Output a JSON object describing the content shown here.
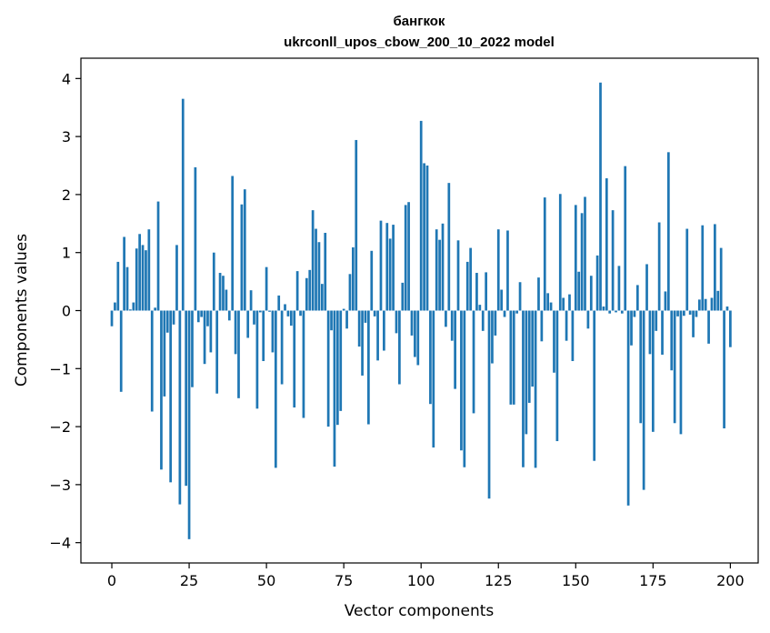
{
  "chart_data": {
    "type": "bar",
    "title_line1": "бангкок",
    "title_line2": "ukrconll_upos_cbow_200_10_2022 model",
    "xlabel": "Vector components",
    "ylabel": "Components values",
    "xlim": [
      -10,
      209
    ],
    "ylim": [
      -4.35,
      4.35
    ],
    "xticks": [
      0,
      25,
      50,
      75,
      100,
      125,
      150,
      175,
      200
    ],
    "xtick_labels": [
      "0",
      "25",
      "50",
      "75",
      "100",
      "125",
      "150",
      "175",
      "200"
    ],
    "yticks": [
      -4,
      -3,
      -2,
      -1,
      0,
      1,
      2,
      3,
      4
    ],
    "ytick_labels": [
      "−4",
      "−3",
      "−2",
      "−1",
      "0",
      "1",
      "2",
      "3",
      "4"
    ],
    "bar_color": "#1f77b4",
    "x_start": 0,
    "values": [
      -0.27,
      0.14,
      0.84,
      -1.4,
      1.27,
      0.75,
      0.02,
      0.14,
      1.07,
      1.32,
      1.13,
      1.04,
      1.4,
      -1.74,
      0.05,
      1.88,
      -2.74,
      -1.48,
      -0.38,
      -2.96,
      -0.24,
      1.13,
      -3.34,
      3.65,
      -3.02,
      -3.94,
      -1.32,
      2.47,
      -0.2,
      -0.11,
      -0.92,
      -0.27,
      -0.72,
      1.0,
      -1.43,
      0.65,
      0.6,
      0.36,
      -0.17,
      2.32,
      -0.75,
      -1.51,
      1.83,
      2.09,
      -0.47,
      0.35,
      -0.24,
      -1.69,
      -0.03,
      -0.87,
      0.75,
      -0.02,
      -0.72,
      -2.71,
      0.26,
      -1.27,
      0.11,
      -0.1,
      -0.26,
      -1.67,
      0.68,
      -0.09,
      -1.85,
      0.56,
      0.7,
      1.73,
      1.41,
      1.18,
      0.46,
      1.34,
      -2.0,
      -0.34,
      -2.69,
      -1.97,
      -1.73,
      0.03,
      -0.31,
      0.63,
      1.09,
      2.94,
      -0.62,
      -1.12,
      -0.21,
      -1.96,
      1.03,
      -0.1,
      -0.86,
      1.55,
      -0.69,
      1.51,
      1.24,
      1.48,
      -0.39,
      -1.27,
      0.48,
      1.82,
      1.87,
      -0.43,
      -0.8,
      -0.94,
      3.27,
      2.54,
      2.5,
      -1.61,
      -2.36,
      1.4,
      1.22,
      1.5,
      -0.28,
      2.2,
      -0.52,
      -1.35,
      1.21,
      -2.41,
      -2.7,
      0.84,
      1.08,
      -1.77,
      0.65,
      0.1,
      -0.35,
      0.66,
      -3.24,
      -0.91,
      -0.43,
      1.4,
      0.36,
      -0.11,
      1.38,
      -1.62,
      -1.62,
      -0.05,
      0.49,
      -2.7,
      -2.13,
      -1.59,
      -1.31,
      -2.71,
      0.57,
      -0.53,
      1.95,
      0.3,
      0.14,
      -1.07,
      -2.25,
      2.01,
      0.22,
      -0.52,
      0.28,
      -0.87,
      1.82,
      0.67,
      1.68,
      1.96,
      -0.31,
      0.6,
      -2.59,
      0.95,
      3.93,
      0.07,
      2.28,
      -0.05,
      1.73,
      -0.03,
      0.77,
      -0.05,
      2.49,
      -3.36,
      -0.6,
      -0.11,
      0.44,
      -1.94,
      -3.09,
      0.8,
      -0.75,
      -2.09,
      -0.35,
      1.52,
      -0.76,
      0.33,
      2.73,
      -1.03,
      -1.94,
      -0.1,
      -2.13,
      -0.09,
      1.41,
      -0.07,
      -0.46,
      -0.11,
      0.19,
      1.47,
      0.2,
      -0.57,
      0.22,
      1.49,
      0.34,
      1.08,
      -2.03,
      0.07,
      -0.63
    ]
  }
}
